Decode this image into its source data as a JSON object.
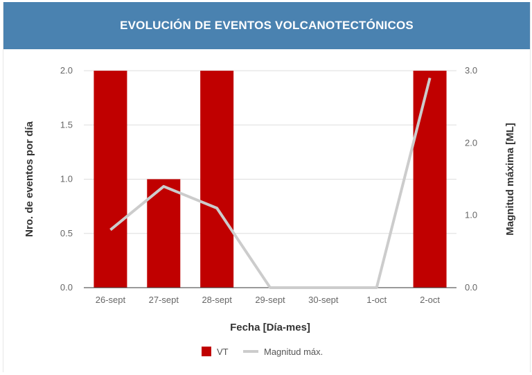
{
  "header": {
    "title": "EVOLUCIÓN DE EVENTOS VOLCANOTECTÓNICOS"
  },
  "colors": {
    "header_bg": "#4a82b0",
    "bar": "#c00000",
    "line": "#cccccc",
    "grid": "#dddddd"
  },
  "chart_data": {
    "type": "bar",
    "title": "EVOLUCIÓN DE EVENTOS VOLCANOTECTÓNICOS",
    "xlabel": "Fecha [Día-mes]",
    "ylabel": "Nro. de eventos por día",
    "y2label": "Magnitud máxima [ML]",
    "categories": [
      "26-sept",
      "27-sept",
      "28-sept",
      "29-sept",
      "30-sept",
      "1-oct",
      "2-oct"
    ],
    "ylim": [
      0,
      2
    ],
    "yticks": [
      "0.0",
      "0.5",
      "1.0",
      "1.5",
      "2.0"
    ],
    "y2lim": [
      0,
      3
    ],
    "y2ticks": [
      "0.0",
      "1.0",
      "2.0",
      "3.0"
    ],
    "grid": true,
    "legend_position": "bottom",
    "series": [
      {
        "name": "VT",
        "type": "bar",
        "axis": "left",
        "color": "#c00000",
        "values": [
          2,
          1,
          2,
          0,
          0,
          0,
          2
        ]
      },
      {
        "name": "Magnitud máx.",
        "type": "line",
        "axis": "right",
        "color": "#cccccc",
        "values": [
          0.8,
          1.4,
          1.1,
          0,
          0,
          0,
          2.9
        ]
      }
    ]
  }
}
